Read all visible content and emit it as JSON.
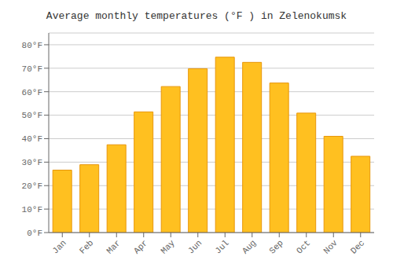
{
  "chart_data": {
    "type": "bar",
    "title": "Average monthly temperatures (°F ) in Zelenokumsk",
    "categories": [
      "Jan",
      "Feb",
      "Mar",
      "Apr",
      "May",
      "Jun",
      "Jul",
      "Aug",
      "Sep",
      "Oct",
      "Nov",
      "Dec"
    ],
    "values": [
      26.6,
      28.9,
      37.4,
      51.4,
      62.2,
      69.8,
      74.7,
      72.5,
      63.7,
      50.9,
      41.0,
      32.5
    ],
    "color": "#FFC020",
    "ylim": [
      0,
      85
    ],
    "yticks": [
      {
        "value": 0,
        "label": "0°F"
      },
      {
        "value": 10,
        "label": "10°F"
      },
      {
        "value": 20,
        "label": "20°F"
      },
      {
        "value": 30,
        "label": "30°F"
      },
      {
        "value": 40,
        "label": "40°F"
      },
      {
        "value": 50,
        "label": "50°F"
      },
      {
        "value": 60,
        "label": "60°F"
      },
      {
        "value": 70,
        "label": "70°F"
      },
      {
        "value": 80,
        "label": "80°F"
      }
    ],
    "grid": true
  }
}
